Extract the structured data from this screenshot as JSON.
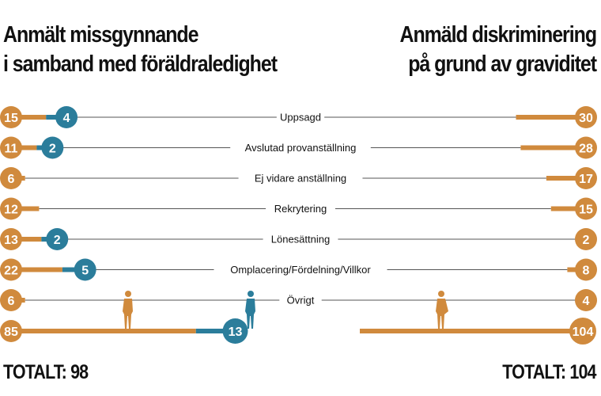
{
  "titles": {
    "left": [
      "Anmält missgynnande",
      "i samband med föräldraledighet"
    ],
    "right": [
      "Anmäld diskriminering",
      "på grund av graviditet"
    ]
  },
  "totals": {
    "left": "TOTALT: 98",
    "right": "TOTALT: 104"
  },
  "colors": {
    "women": "#d08a3d",
    "men": "#2b7d9b",
    "line": "#555555"
  },
  "icons": [
    "woman-icon",
    "man-icon",
    "pregnant-woman-icon"
  ],
  "chart_data": {
    "type": "bar",
    "categories": [
      "Uppsagd",
      "Avslutad provanställning",
      "Ej vidare anställning",
      "Rekrytering",
      "Lönesättning",
      "Omplacering/Fördelning/Villkor",
      "Övrigt"
    ],
    "series": [
      {
        "values": [
          15,
          11,
          6,
          12,
          13,
          22,
          6
        ],
        "total": 85
      },
      {
        "values": [
          4,
          2,
          null,
          null,
          2,
          5,
          null
        ],
        "total": 13
      },
      {
        "values": [
          30,
          28,
          17,
          15,
          2,
          8,
          4
        ],
        "total": 104
      }
    ]
  }
}
